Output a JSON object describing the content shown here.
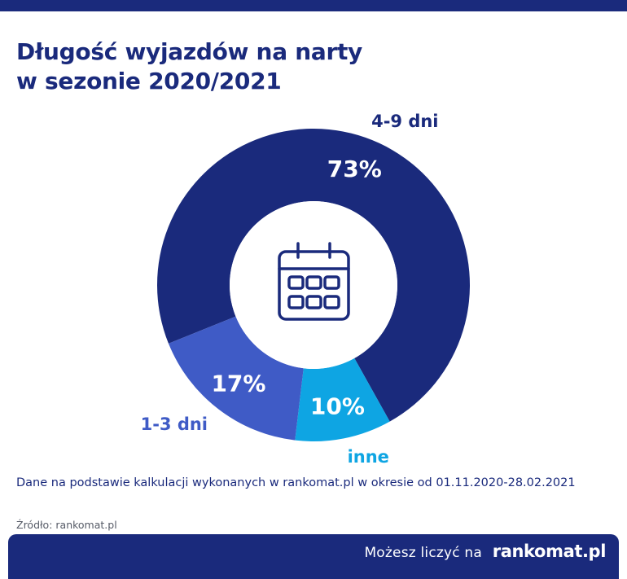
{
  "title": {
    "line1": "Długość wyjazdów na narty",
    "line2": "w sezonie 2020/2021"
  },
  "chart_data": {
    "type": "pie",
    "title": "Długość wyjazdów na narty w sezonie 2020/2021",
    "unit": "%",
    "center_icon": "calendar-icon",
    "slices": [
      {
        "name": "4-9 dni",
        "value": 73,
        "label": "73%",
        "color": "#1a2a7c"
      },
      {
        "name": "inne",
        "value": 10,
        "label": "10%",
        "color": "#0ea5e3"
      },
      {
        "name": "1-3 dni",
        "value": 17,
        "label": "17%",
        "color": "#3f5bc6"
      }
    ]
  },
  "note": "Dane na podstawie kalkulacji wykonanych w rankomat.pl w okresie od 01.11.2020-28.02.2021",
  "source": "Źródło: rankomat.pl",
  "footer": {
    "tagline": "Możesz liczyć na",
    "logo": "rankomat.pl"
  }
}
